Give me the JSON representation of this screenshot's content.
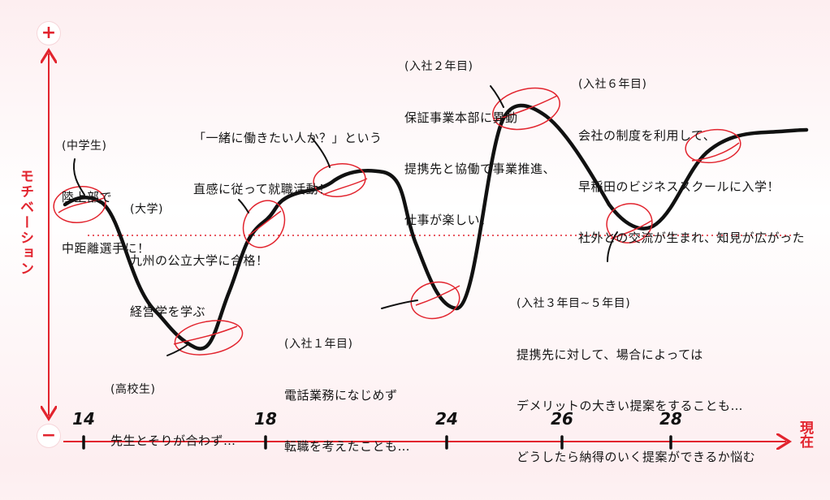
{
  "axis": {
    "plus_label": "+",
    "minus_label": "−",
    "y_label": "モチベーション",
    "x_end_label": "現在",
    "ticks": [
      "14",
      "18",
      "24",
      "26",
      "28"
    ]
  },
  "colors": {
    "accent": "#e2242e",
    "curve": "#111111",
    "background": "#fdeef0"
  },
  "annotations": [
    {
      "id": "junior-high",
      "head": "(中学生)",
      "lines": [
        "陸上部で",
        "中距離選手に！"
      ]
    },
    {
      "id": "high-school",
      "head": "(高校生)",
      "lines": [
        "先生とそりが合わず…"
      ]
    },
    {
      "id": "university",
      "head": "(大学)",
      "lines": [
        "九州の公立大学に合格！",
        "経営学を学ぶ"
      ]
    },
    {
      "id": "job-hunting",
      "head": "",
      "lines": [
        "「一緒に働きたい人か？」という",
        "直感に従って就職活動！"
      ]
    },
    {
      "id": "first-year",
      "head": "(入社１年目)",
      "lines": [
        "電話業務になじめず",
        "転職を考えたことも…"
      ]
    },
    {
      "id": "second-year",
      "head": "(入社２年目)",
      "lines": [
        "保証事業本部に異動",
        "提携先と協働で事業推進、",
        "仕事が楽しい！"
      ]
    },
    {
      "id": "years-3-5",
      "head": "(入社３年目~５年目)",
      "lines": [
        "提携先に対して、場合によっては",
        "デメリットの大きい提案をすることも…",
        "どうしたら納得のいく提案ができるか悩む"
      ]
    },
    {
      "id": "sixth-year",
      "head": "(入社６年目)",
      "lines": [
        "会社の制度を利用して、",
        "早稲田のビジネススクールに入学！",
        "社外との交流が生まれ、知見が広がった"
      ]
    }
  ]
}
